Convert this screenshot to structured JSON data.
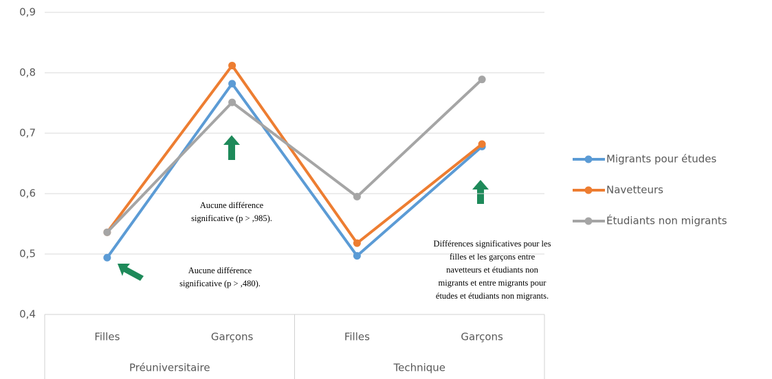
{
  "chart_data": {
    "type": "line",
    "categories": [
      "Filles",
      "Garçons",
      "Filles",
      "Garçons"
    ],
    "groups": [
      "Préuniversitaire",
      "Technique"
    ],
    "series": [
      {
        "name": "Migrants pour études",
        "color": "#5b9bd5",
        "values": [
          0.494,
          0.782,
          0.497,
          0.678
        ]
      },
      {
        "name": "Navetteurs",
        "color": "#ed7d31",
        "values": [
          0.536,
          0.812,
          0.518,
          0.682
        ]
      },
      {
        "name": "Étudiants non migrants",
        "color": "#a5a5a5",
        "values": [
          0.536,
          0.751,
          0.595,
          0.789
        ]
      }
    ],
    "ylim": [
      0.4,
      0.9
    ],
    "yticks": [
      {
        "value": 0.4,
        "label": "0,4"
      },
      {
        "value": 0.5,
        "label": "0,5"
      },
      {
        "value": 0.6,
        "label": "0,6"
      },
      {
        "value": 0.7,
        "label": "0,7"
      },
      {
        "value": 0.8,
        "label": "0,8"
      },
      {
        "value": 0.9,
        "label": "0,9"
      }
    ],
    "grid": true,
    "legend": "right",
    "annotations": [
      {
        "lines": [
          "Aucune différence",
          "significative (p > ,985)."
        ]
      },
      {
        "lines": [
          "Aucune différence",
          "significative (p > ,480)."
        ]
      },
      {
        "lines": [
          "Différences significatives pour les",
          "filles et les garçons entre",
          "navetteurs et étudiants non",
          "migrants et entre migrants pour",
          "études et étudiants non migrants."
        ]
      }
    ]
  }
}
